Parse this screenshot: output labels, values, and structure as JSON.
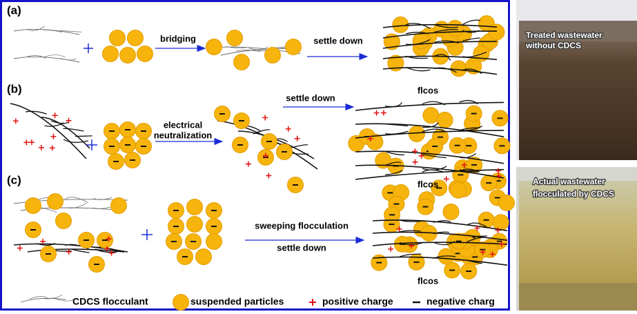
{
  "panels": [
    {
      "label": "(a)",
      "step1": [
        "bridging"
      ],
      "step2": "settle down",
      "result": "flcos"
    },
    {
      "label": "(b)",
      "step1": [
        "electrical",
        "neutralization"
      ],
      "step2": "settle down",
      "result": "flcos"
    },
    {
      "label": "(c)",
      "step1": [
        "sweeping flocculation"
      ],
      "step2": "settle down",
      "result": "flcos"
    }
  ],
  "legend": [
    "CDCS flocculant",
    "suspended particles",
    "positive charge",
    "negative charg"
  ],
  "photos": [
    {
      "caption": [
        "Treated wastewater",
        "without CDCS"
      ]
    },
    {
      "caption": [
        "Actual wastewater",
        "flocculated by CDCS"
      ]
    }
  ]
}
